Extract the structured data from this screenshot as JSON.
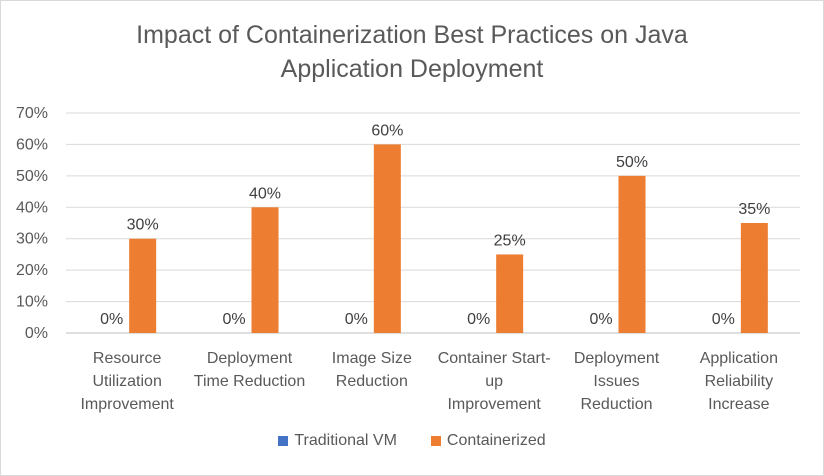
{
  "chart_data": {
    "type": "bar",
    "title_lines": [
      "Impact of Containerization Best Practices on Java",
      "Application Deployment"
    ],
    "categories": [
      [
        "Resource",
        "Utilization",
        "Improvement"
      ],
      [
        "Deployment",
        "Time Reduction"
      ],
      [
        "Image Size",
        "Reduction"
      ],
      [
        "Container Start-",
        "up",
        "Improvement"
      ],
      [
        "Deployment",
        "Issues",
        "Reduction"
      ],
      [
        "Application",
        "Reliability",
        "Increase"
      ]
    ],
    "series": [
      {
        "name": "Traditional VM",
        "color": "#4472c4",
        "values": [
          0,
          0,
          0,
          0,
          0,
          0
        ]
      },
      {
        "name": "Containerized",
        "color": "#ed7d31",
        "values": [
          30,
          40,
          60,
          25,
          50,
          35
        ]
      }
    ],
    "value_suffix": "%",
    "ylim": [
      0,
      70
    ],
    "ytick_step": 10,
    "yticks": [
      "0%",
      "10%",
      "20%",
      "30%",
      "40%",
      "50%",
      "60%",
      "70%"
    ],
    "grid": true,
    "legend_position": "bottom"
  }
}
